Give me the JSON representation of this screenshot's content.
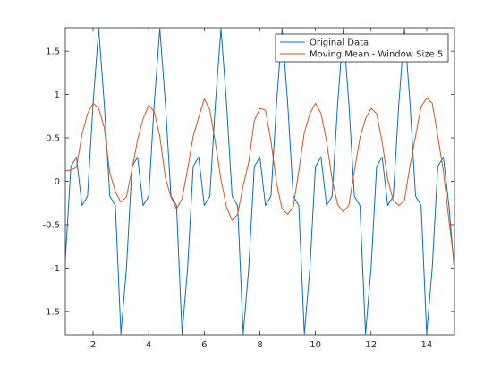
{
  "chart_data": {
    "type": "line",
    "xlim": [
      1,
      15
    ],
    "ylim": [
      -1.77,
      1.77
    ],
    "xticks": [
      2,
      4,
      6,
      8,
      10,
      12,
      14
    ],
    "xtick_labels": [
      "2",
      "4",
      "6",
      "8",
      "10",
      "12",
      "14"
    ],
    "yticks": [
      -1.5,
      -1,
      -0.5,
      0,
      0.5,
      1,
      1.5
    ],
    "ytick_labels": [
      "-1.5",
      "-1",
      "-0.5",
      "0",
      "0.5",
      "1",
      "1.5"
    ],
    "grid": false,
    "legend_position": "top-right",
    "series": [
      {
        "name": "Original Data",
        "color": "#0072BD",
        "x": [
          1.0,
          1.2,
          1.4,
          1.6,
          1.8,
          2.0,
          2.2,
          2.4,
          2.6,
          2.8,
          3.0,
          3.2,
          3.4,
          3.6,
          3.8,
          4.0,
          4.2,
          4.4,
          4.6,
          4.8,
          5.0,
          5.2,
          5.4,
          5.6,
          5.8,
          6.0,
          6.2,
          6.4,
          6.6,
          6.8,
          7.0,
          7.2,
          7.4,
          7.6,
          7.8,
          8.0,
          8.2,
          8.4,
          8.6,
          8.8,
          9.0,
          9.2,
          9.4,
          9.6,
          9.8,
          10.0,
          10.2,
          10.4,
          10.6,
          10.8,
          11.0,
          11.2,
          11.4,
          11.6,
          11.8,
          12.0,
          12.2,
          12.4,
          12.6,
          12.8,
          13.0,
          13.2,
          13.4,
          13.6,
          13.8,
          14.0,
          14.2,
          14.4,
          14.6,
          14.8,
          15.0
        ],
        "values": [
          -0.9,
          0.17,
          0.28,
          -0.28,
          -0.17,
          0.9,
          1.76,
          0.9,
          -0.17,
          -0.28,
          -1.76,
          -1.0,
          0.17,
          0.28,
          -0.28,
          -0.17,
          0.9,
          1.76,
          0.9,
          -0.17,
          -0.28,
          -1.76,
          -1.0,
          0.17,
          0.28,
          -0.28,
          -0.17,
          0.9,
          1.76,
          0.9,
          -0.17,
          -0.28,
          -1.76,
          -1.0,
          0.17,
          0.28,
          -0.28,
          -0.17,
          0.9,
          1.76,
          0.9,
          -0.17,
          -0.28,
          -1.76,
          -1.0,
          0.17,
          0.28,
          -0.28,
          -0.17,
          0.9,
          1.76,
          0.9,
          -0.17,
          -0.28,
          -1.76,
          -1.0,
          0.17,
          0.28,
          -0.28,
          -0.17,
          0.9,
          1.76,
          0.9,
          -0.17,
          -0.28,
          -1.76,
          -1.0,
          0.17,
          0.28,
          -0.28,
          -1.05
        ]
      },
      {
        "name": "Moving Mean - Window Size 5",
        "color": "#D95319",
        "x": [
          1.0,
          1.2,
          1.4,
          1.6,
          1.8,
          2.0,
          2.2,
          2.4,
          2.6,
          2.8,
          3.0,
          3.2,
          3.4,
          3.6,
          3.8,
          4.0,
          4.2,
          4.4,
          4.6,
          4.8,
          5.0,
          5.2,
          5.4,
          5.6,
          5.8,
          6.0,
          6.2,
          6.4,
          6.6,
          6.8,
          7.0,
          7.2,
          7.4,
          7.6,
          7.8,
          8.0,
          8.2,
          8.4,
          8.6,
          8.8,
          9.0,
          9.2,
          9.4,
          9.6,
          9.8,
          10.0,
          10.2,
          10.4,
          10.6,
          10.8,
          11.0,
          11.2,
          11.4,
          11.6,
          11.8,
          12.0,
          12.2,
          12.4,
          12.6,
          12.8,
          13.0,
          13.2,
          13.4,
          13.6,
          13.8,
          14.0,
          14.2,
          14.4,
          14.6,
          14.8,
          15.0
        ],
        "values": [
          0.12,
          0.13,
          0.16,
          0.54,
          0.78,
          0.9,
          0.84,
          0.62,
          0.1,
          -0.12,
          -0.24,
          -0.18,
          0.14,
          0.48,
          0.72,
          0.88,
          0.8,
          0.52,
          0.04,
          -0.18,
          -0.32,
          -0.2,
          0.14,
          0.52,
          0.74,
          0.95,
          0.82,
          0.44,
          0.02,
          -0.3,
          -0.45,
          -0.38,
          -0.05,
          0.22,
          0.7,
          0.84,
          0.82,
          0.46,
          -0.02,
          -0.32,
          -0.38,
          -0.3,
          0.12,
          0.56,
          0.78,
          0.9,
          0.78,
          0.46,
          0.02,
          -0.27,
          -0.35,
          -0.28,
          0.12,
          0.5,
          0.72,
          0.84,
          0.78,
          0.45,
          0.02,
          -0.22,
          -0.28,
          -0.22,
          0.18,
          0.52,
          0.86,
          0.96,
          0.9,
          0.52,
          0.12,
          -0.45,
          -0.97
        ]
      }
    ]
  }
}
